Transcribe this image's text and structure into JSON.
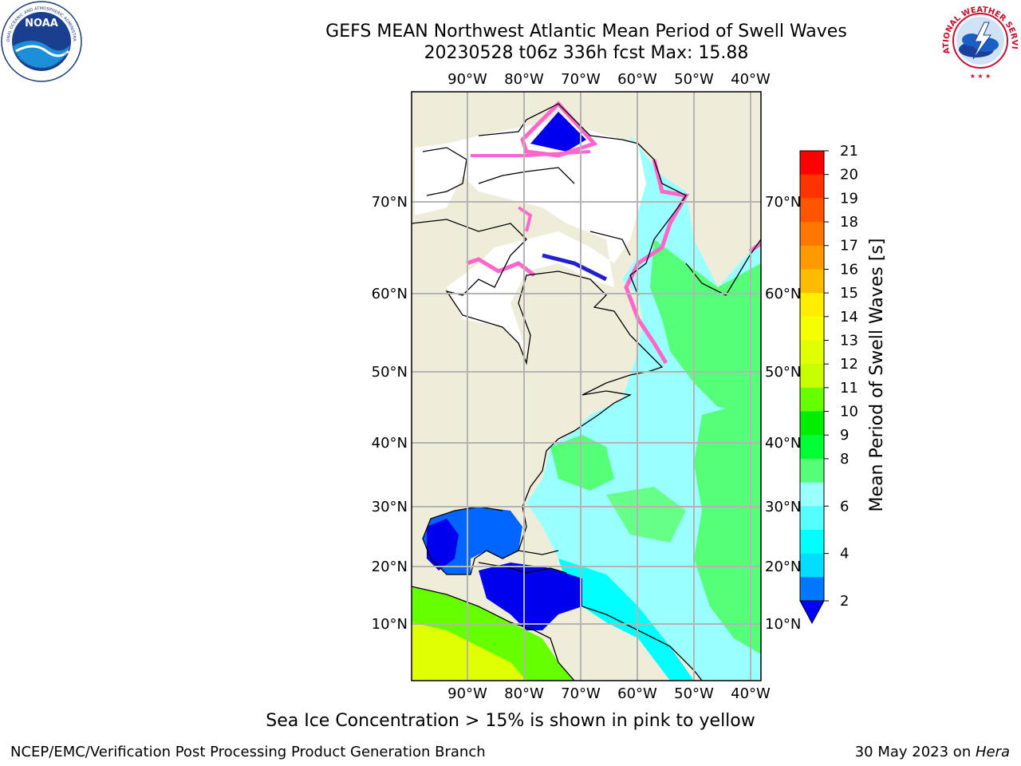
{
  "header": {
    "title_line1": "GEFS MEAN Northwest Atlantic Mean Period of Swell Waves",
    "title_line2": "20230528 t06z 336h fcst   Max: 15.88"
  },
  "logos": {
    "noaa_text": "NOAA",
    "noaa_ring": "NATIONAL OCEANIC AND ATMOSPHERIC ADMINISTRATION",
    "noaa_ring_bottom": "U.S. DEPARTMENT OF COMMERCE",
    "nws_ring": "NATIONAL WEATHER SERVICE"
  },
  "map": {
    "lon_labels": [
      "90°W",
      "80°W",
      "70°W",
      "60°W",
      "50°W",
      "40°W"
    ],
    "lat_labels": [
      "70°N",
      "60°N",
      "50°N",
      "40°N",
      "30°N",
      "20°N",
      "10°N"
    ],
    "colors": {
      "land": "#efedda",
      "ice": "#ffffff",
      "grid": "#b4b4b4"
    }
  },
  "colorbar": {
    "label": "Mean Period of Swell Waves [s]",
    "ticks": [
      "21",
      "20",
      "19",
      "18",
      "17",
      "16",
      "15",
      "14",
      "13",
      "12",
      "11",
      "10",
      "9",
      "8",
      "6",
      "4",
      "2"
    ],
    "colors": [
      "#ff0000",
      "#ff3300",
      "#ff5500",
      "#ff7700",
      "#ff9900",
      "#ffbb00",
      "#ffee00",
      "#f5ff00",
      "#e0ff00",
      "#c8ff00",
      "#66ff00",
      "#00ee00",
      "#00ff33",
      "#55ff77",
      "#99ffff",
      "#55ffff",
      "#00ffff",
      "#00ddff",
      "#0077ff"
    ],
    "under_color": "#0000ff"
  },
  "footer": {
    "note": "Sea Ice Concentration > 15% is shown in pink to yellow",
    "left": "NCEP/EMC/Verification Post Processing Product Generation Branch",
    "date": "30 May 2023 on ",
    "host": "Hera"
  }
}
